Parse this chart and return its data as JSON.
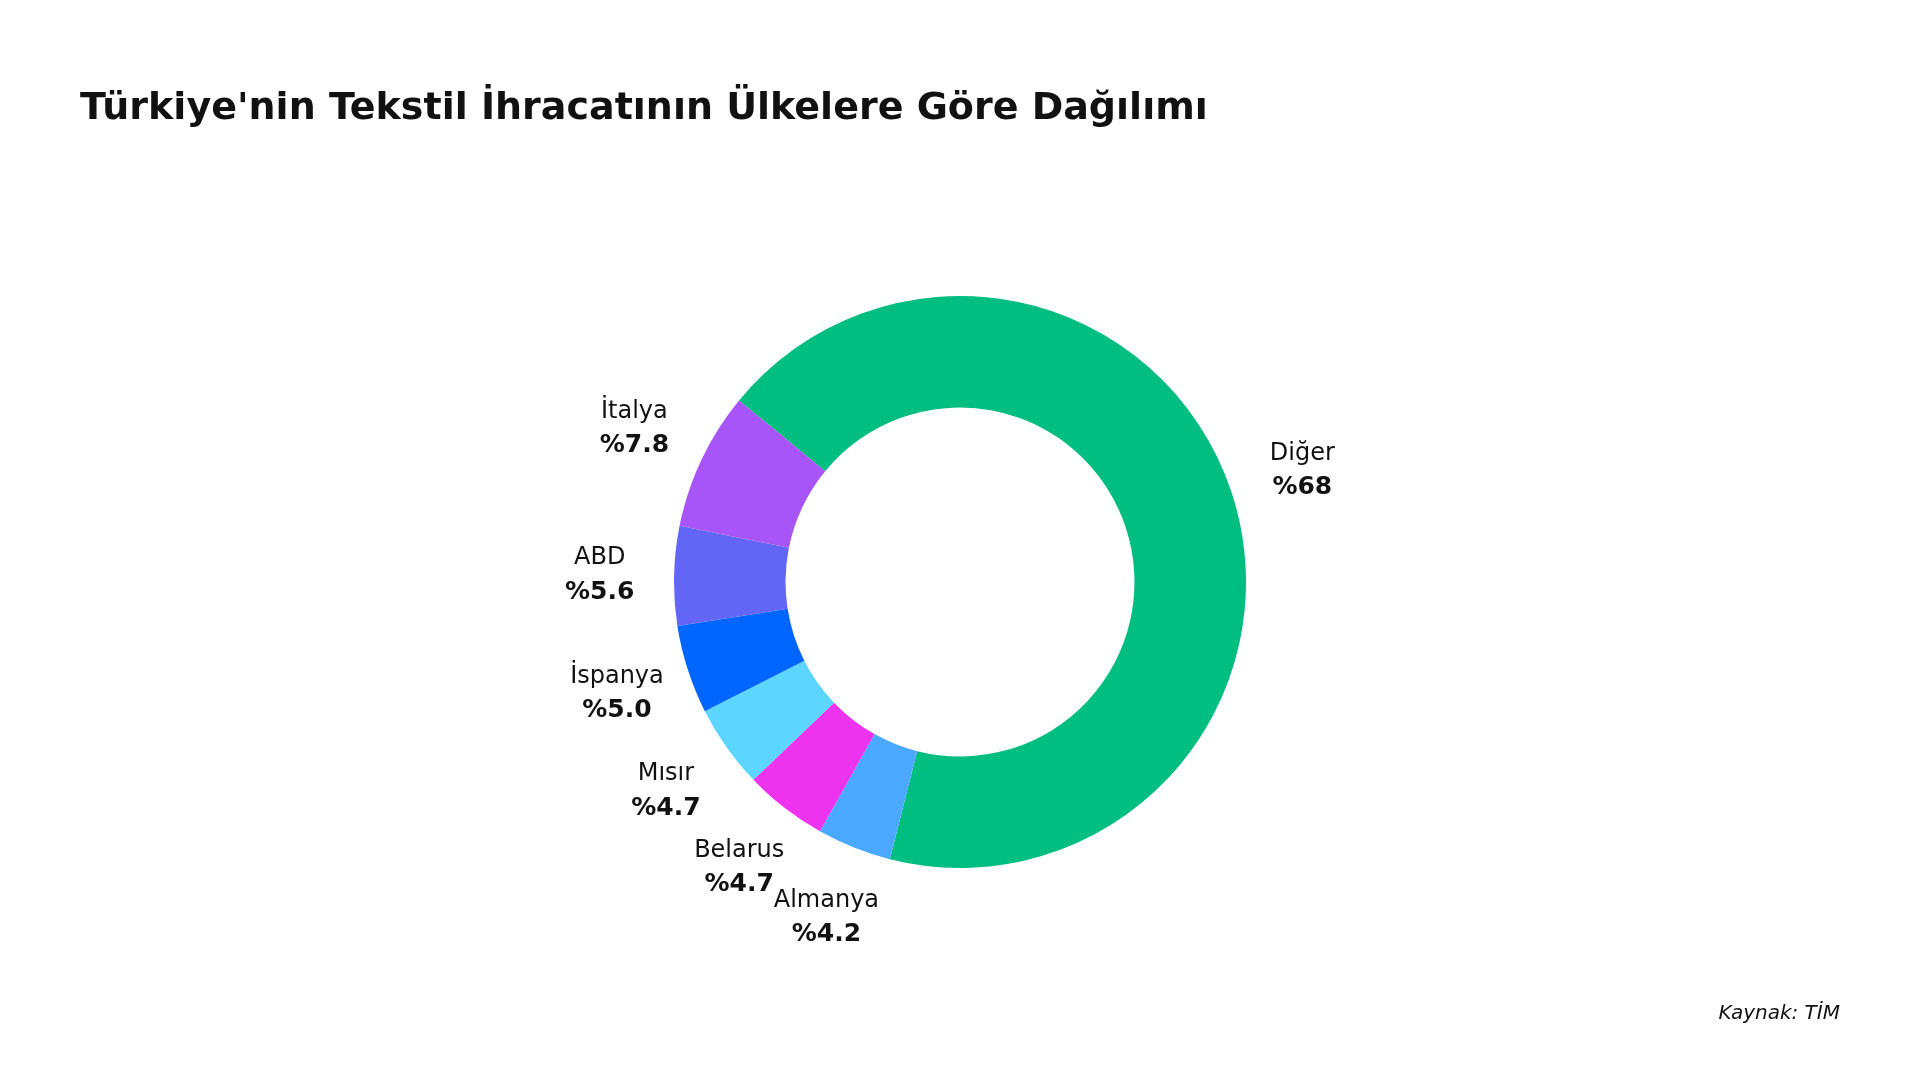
{
  "chart_data": {
    "type": "donut",
    "title": "Türkiye'nin Tekstil İhracatının Ülkelere Göre Dağılımı",
    "categories": [
      "Diğer",
      "Almanya",
      "Belarus",
      "Mısır",
      "İspanya",
      "ABD",
      "İtalya"
    ],
    "values": [
      68,
      4.2,
      4.7,
      4.7,
      5.0,
      5.6,
      7.8
    ],
    "value_labels": [
      "%68",
      "%4.2",
      "%4.7",
      "%4.7",
      "%5.0",
      "%5.6",
      "%7.8"
    ],
    "colors": [
      "#00bd80",
      "#4aa8ff",
      "#ee33ee",
      "#5cd6ff",
      "#0066ff",
      "#6366f5",
      "#a855f7"
    ],
    "legend": false,
    "annotations": [
      "Kaynak: TİM"
    ]
  }
}
